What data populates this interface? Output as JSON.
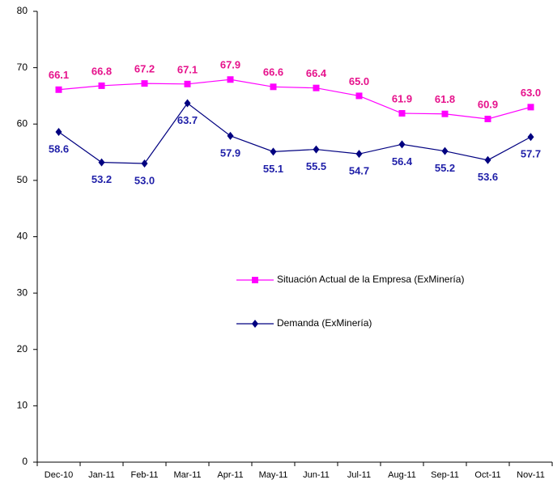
{
  "chart_data": {
    "type": "line",
    "categories": [
      "Dec-10",
      "Jan-11",
      "Feb-11",
      "Mar-11",
      "Apr-11",
      "May-11",
      "Jun-11",
      "Jul-11",
      "Aug-11",
      "Sep-11",
      "Oct-11",
      "Nov-11"
    ],
    "series": [
      {
        "name": "Situación Actual de la Empresa (ExMinería)",
        "color": "#ff00ff",
        "label_color": "#e6128c",
        "marker": "square",
        "values": [
          66.1,
          66.8,
          67.2,
          67.1,
          67.9,
          66.6,
          66.4,
          65.0,
          61.9,
          61.8,
          60.9,
          63.0
        ],
        "value_labels": [
          "66.1",
          "66.8",
          "67.2",
          "67.1",
          "67.9",
          "66.6",
          "66.4",
          "65.0",
          "61.9",
          "61.8",
          "60.9",
          "63.0"
        ]
      },
      {
        "name": "Demanda (ExMinería)",
        "color": "#000080",
        "label_color": "#1f1fa8",
        "marker": "diamond",
        "values": [
          58.6,
          53.2,
          53.0,
          63.7,
          57.9,
          55.1,
          55.5,
          54.7,
          56.4,
          55.2,
          53.6,
          57.7
        ],
        "value_labels": [
          "58.6",
          "53.2",
          "53.0",
          "63.7",
          "57.9",
          "55.1",
          "55.5",
          "54.7",
          "56.4",
          "55.2",
          "53.6",
          "57.7"
        ]
      }
    ],
    "ylim": [
      0,
      80
    ],
    "yticks": [
      0,
      10,
      20,
      30,
      40,
      50,
      60,
      70,
      80
    ],
    "grid": false
  }
}
